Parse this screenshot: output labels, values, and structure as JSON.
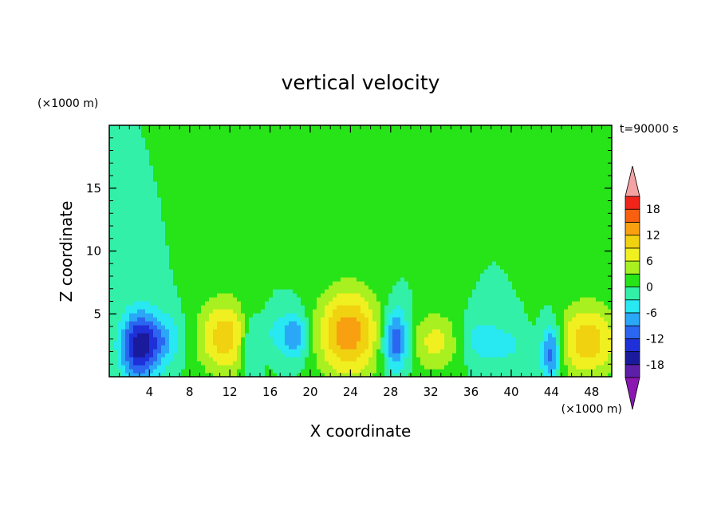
{
  "chart_data": {
    "type": "heatmap",
    "title": "vertical velocity",
    "time_label": "t=90000 s",
    "xlabel": "X coordinate",
    "ylabel": "Z coordinate",
    "x_unit": "(×1000 m)",
    "y_unit": "(×1000 m)",
    "xlim": [
      0,
      50
    ],
    "ylim": [
      0,
      20
    ],
    "x_ticks": [
      4,
      8,
      12,
      16,
      20,
      24,
      28,
      32,
      36,
      40,
      44,
      48
    ],
    "x_tick_labels": [
      "4",
      "8",
      "12",
      "16",
      "20",
      "24",
      "28",
      "32",
      "36",
      "40",
      "44",
      "48"
    ],
    "y_ticks": [
      5,
      10,
      15
    ],
    "y_tick_labels": [
      "5",
      "10",
      "15"
    ],
    "grid": false,
    "colorbar": {
      "placement": "right",
      "levels": [
        -21,
        -18,
        -15,
        -12,
        -9,
        -6,
        -3,
        0,
        3,
        6,
        9,
        12,
        15,
        18,
        21
      ],
      "labeled_levels": [
        -18,
        -12,
        -6,
        0,
        6,
        12,
        18
      ],
      "labels": [
        "-18",
        "-12",
        "-6",
        "0",
        "6",
        "12",
        "18"
      ],
      "colors": [
        "#5e1fa8",
        "#1a1a9c",
        "#1f30d8",
        "#2a66f0",
        "#2aa8f7",
        "#28e8f2",
        "#32f0a8",
        "#26e418",
        "#a8f020",
        "#f0f020",
        "#f0d210",
        "#f8a010",
        "#f86010",
        "#f0241a"
      ],
      "under_color": "#8a18b0",
      "over_color": "#f4a2a2"
    },
    "background_value": 0,
    "cells": [
      {
        "x": 3.0,
        "z": 2.5,
        "sx": 1.3,
        "sz": 1.9,
        "w": -17
      },
      {
        "x": 5.5,
        "z": 3.0,
        "sx": 1.2,
        "sz": 1.4,
        "w": -6
      },
      {
        "x": 11.5,
        "z": 3.2,
        "sx": 1.9,
        "sz": 2.1,
        "w": 11
      },
      {
        "x": 14.0,
        "z": 2.6,
        "sx": 0.7,
        "sz": 1.8,
        "w": -7
      },
      {
        "x": 16.5,
        "z": 3.5,
        "sx": 0.9,
        "sz": 1.2,
        "w": -4
      },
      {
        "x": 18.5,
        "z": 3.3,
        "sx": 0.9,
        "sz": 1.3,
        "w": -9
      },
      {
        "x": 23.8,
        "z": 3.5,
        "sx": 2.2,
        "sz": 2.5,
        "w": 14
      },
      {
        "x": 28.5,
        "z": 3.0,
        "sx": 0.9,
        "sz": 1.7,
        "w": -13
      },
      {
        "x": 32.5,
        "z": 2.8,
        "sx": 1.8,
        "sz": 1.7,
        "w": 7
      },
      {
        "x": 37.0,
        "z": 3.0,
        "sx": 1.5,
        "sz": 1.3,
        "w": -5
      },
      {
        "x": 40.0,
        "z": 2.5,
        "sx": 1.2,
        "sz": 1.2,
        "w": -3
      },
      {
        "x": 44.0,
        "z": 2.0,
        "sx": 0.7,
        "sz": 1.7,
        "w": -12
      },
      {
        "x": 47.6,
        "z": 2.9,
        "sx": 2.2,
        "sz": 2.1,
        "w": 11
      }
    ]
  }
}
